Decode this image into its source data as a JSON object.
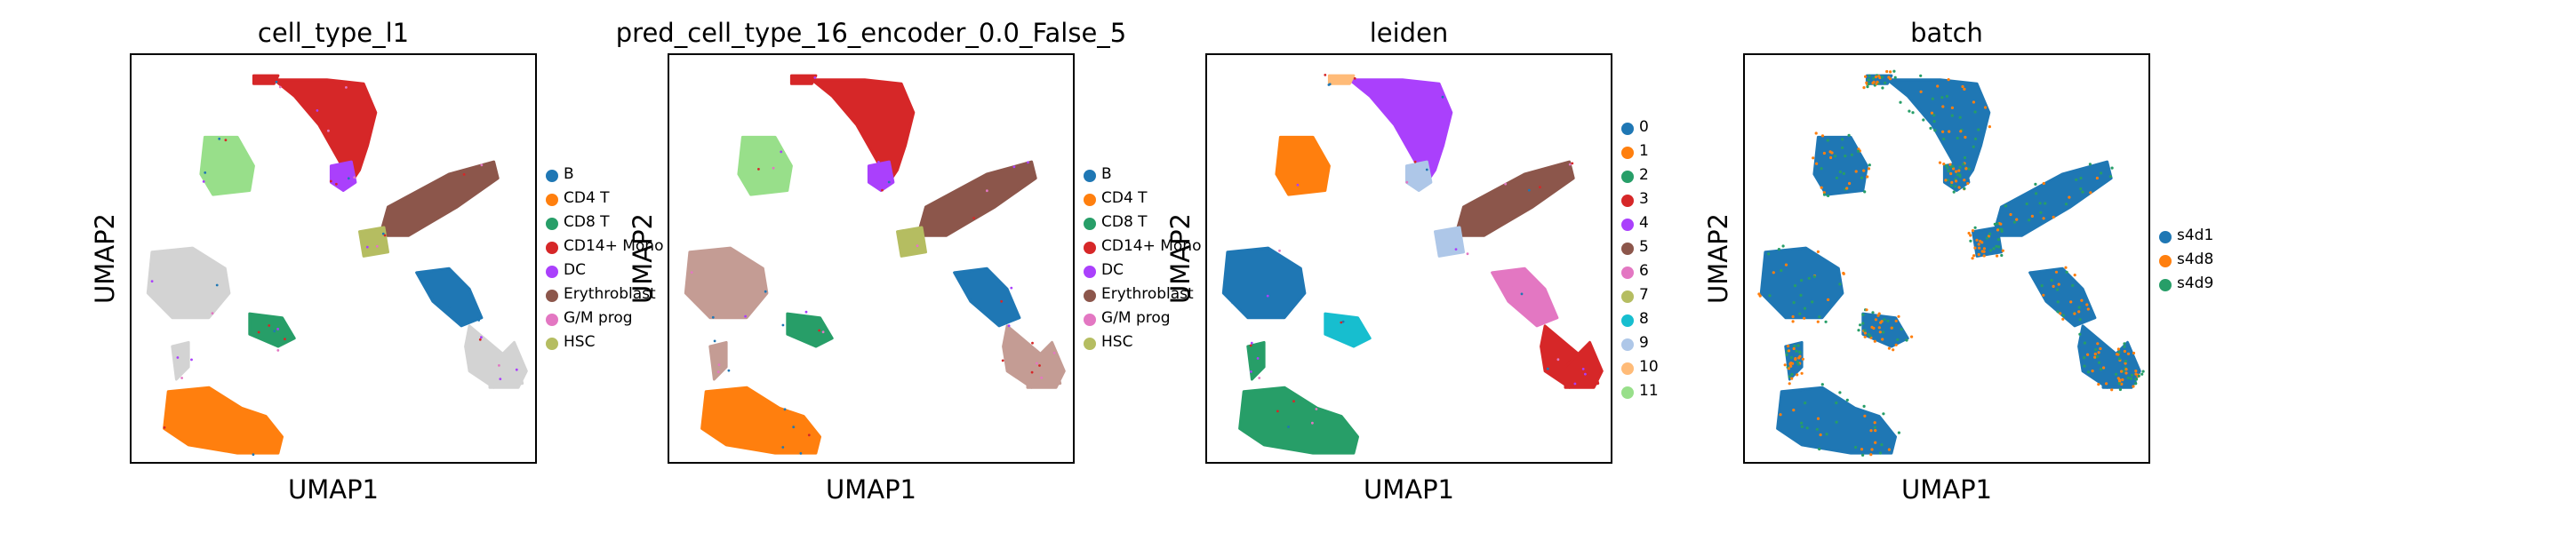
{
  "chart_data": [
    {
      "type": "scatter",
      "title": "cell_type_l1",
      "xlabel": "UMAP1",
      "ylabel": "UMAP2",
      "grid": false,
      "legend_position": "right",
      "legend": [
        {
          "name": "B",
          "color": "#1f77b4"
        },
        {
          "name": "CD4 T",
          "color": "#ff7f0e"
        },
        {
          "name": "CD8 T",
          "color": "#279e68"
        },
        {
          "name": "CD14+ Mono",
          "color": "#d62728"
        },
        {
          "name": "DC",
          "color": "#aa40fc"
        },
        {
          "name": "Erythroblast",
          "color": "#8c564b"
        },
        {
          "name": "G/M prog",
          "color": "#e377c2"
        },
        {
          "name": "HSC",
          "color": "#b5bd61"
        }
      ]
    },
    {
      "type": "scatter",
      "title": "pred_cell_type_16_encoder_0.0_False_5",
      "xlabel": "UMAP1",
      "ylabel": "UMAP2",
      "grid": false,
      "legend_position": "right",
      "legend": [
        {
          "name": "B",
          "color": "#1f77b4"
        },
        {
          "name": "CD4 T",
          "color": "#ff7f0e"
        },
        {
          "name": "CD8 T",
          "color": "#279e68"
        },
        {
          "name": "CD14+ Mono",
          "color": "#d62728"
        },
        {
          "name": "DC",
          "color": "#aa40fc"
        },
        {
          "name": "Erythroblast",
          "color": "#8c564b"
        },
        {
          "name": "G/M prog",
          "color": "#e377c2"
        },
        {
          "name": "HSC",
          "color": "#b5bd61"
        }
      ]
    },
    {
      "type": "scatter",
      "title": "leiden",
      "xlabel": "UMAP1",
      "ylabel": "UMAP2",
      "grid": false,
      "legend_position": "right",
      "legend": [
        {
          "name": "0",
          "color": "#1f77b4"
        },
        {
          "name": "1",
          "color": "#ff7f0e"
        },
        {
          "name": "2",
          "color": "#279e68"
        },
        {
          "name": "3",
          "color": "#d62728"
        },
        {
          "name": "4",
          "color": "#aa40fc"
        },
        {
          "name": "5",
          "color": "#8c564b"
        },
        {
          "name": "6",
          "color": "#e377c2"
        },
        {
          "name": "7",
          "color": "#b5bd61"
        },
        {
          "name": "8",
          "color": "#17becf"
        },
        {
          "name": "9",
          "color": "#aec7e8"
        },
        {
          "name": "10",
          "color": "#ffbb78"
        },
        {
          "name": "11",
          "color": "#98df8a"
        }
      ]
    },
    {
      "type": "scatter",
      "title": "batch",
      "xlabel": "UMAP1",
      "ylabel": "UMAP2",
      "grid": false,
      "legend_position": "right",
      "legend": [
        {
          "name": "s4d1",
          "color": "#1f77b4"
        },
        {
          "name": "s4d8",
          "color": "#ff7f0e"
        },
        {
          "name": "s4d9",
          "color": "#279e68"
        }
      ]
    }
  ]
}
